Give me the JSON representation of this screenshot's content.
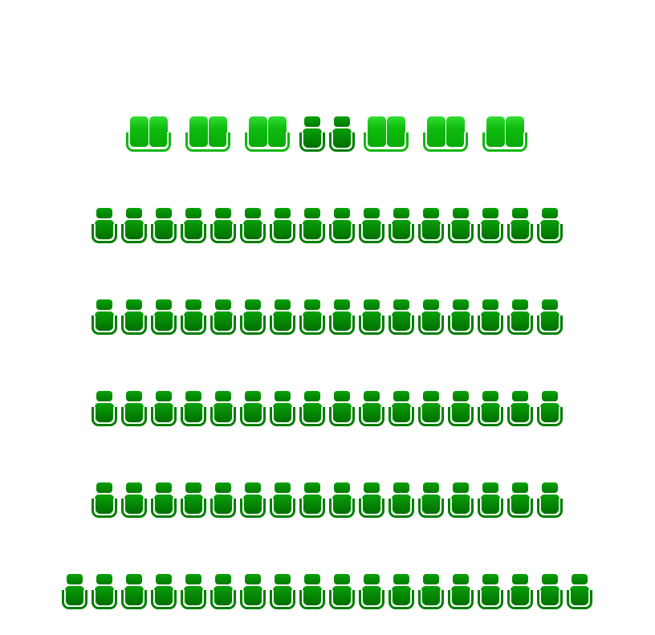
{
  "legend_colors": {
    "standard": "#008000",
    "couple": "#11bb11"
  },
  "rows": [
    {
      "seats": [
        "couple",
        "couple",
        "couple",
        "standard",
        "standard",
        "couple",
        "couple",
        "couple"
      ]
    },
    {
      "seats": [
        "standard",
        "standard",
        "standard",
        "standard",
        "standard",
        "standard",
        "standard",
        "standard",
        "standard",
        "standard",
        "standard",
        "standard",
        "standard",
        "standard",
        "standard",
        "standard"
      ]
    },
    {
      "seats": [
        "standard",
        "standard",
        "standard",
        "standard",
        "standard",
        "standard",
        "standard",
        "standard",
        "standard",
        "standard",
        "standard",
        "standard",
        "standard",
        "standard",
        "standard",
        "standard"
      ]
    },
    {
      "seats": [
        "standard",
        "standard",
        "standard",
        "standard",
        "standard",
        "standard",
        "standard",
        "standard",
        "standard",
        "standard",
        "standard",
        "standard",
        "standard",
        "standard",
        "standard",
        "standard"
      ]
    },
    {
      "seats": [
        "standard",
        "standard",
        "standard",
        "standard",
        "standard",
        "standard",
        "standard",
        "standard",
        "standard",
        "standard",
        "standard",
        "standard",
        "standard",
        "standard",
        "standard",
        "standard"
      ]
    },
    {
      "seats": [
        "standard",
        "standard",
        "standard",
        "standard",
        "standard",
        "standard",
        "standard",
        "standard",
        "standard",
        "standard",
        "standard",
        "standard",
        "standard",
        "standard",
        "standard",
        "standard",
        "standard",
        "standard"
      ]
    }
  ]
}
